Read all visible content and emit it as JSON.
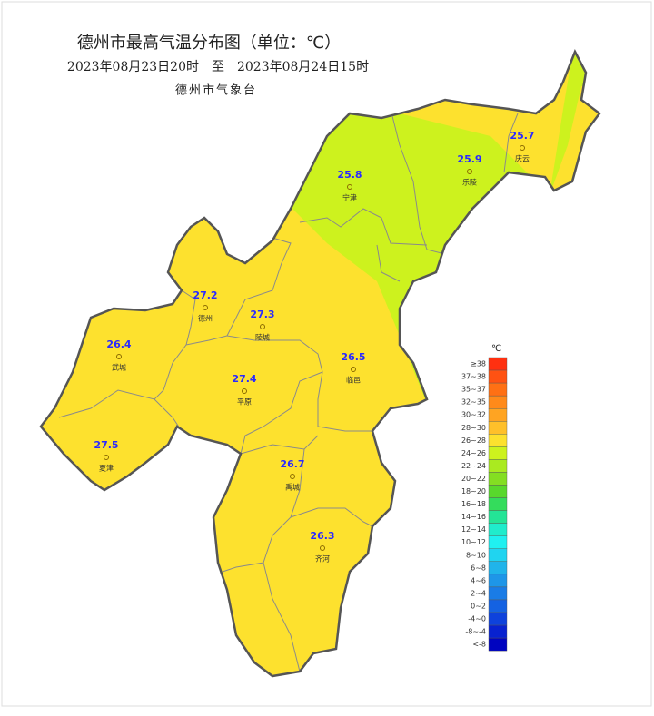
{
  "title": "德州市最高气温分布图（单位：℃）",
  "subtitle": "2023年08月23日20时　至　2023年08月24日15时",
  "organization": "德州市气象台",
  "stations": [
    {
      "name": "庆云",
      "value": 25.7
    },
    {
      "name": "宁津",
      "value": 25.8
    },
    {
      "name": "乐陵",
      "value": 25.9
    },
    {
      "name": "德州",
      "value": 27.2
    },
    {
      "name": "陵城",
      "value": 27.3
    },
    {
      "name": "武城",
      "value": 26.4
    },
    {
      "name": "临邑",
      "value": 26.5
    },
    {
      "name": "平原",
      "value": 27.4
    },
    {
      "name": "夏津",
      "value": 27.5
    },
    {
      "name": "禹城",
      "value": 26.7
    },
    {
      "name": "齐河",
      "value": 26.3
    }
  ],
  "legend": {
    "unit": "℃",
    "items": [
      {
        "label": "≥38",
        "color": "#ff3010"
      },
      {
        "label": "37~38",
        "color": "#ff5212"
      },
      {
        "label": "35~37",
        "color": "#ff7014"
      },
      {
        "label": "32~35",
        "color": "#ff8a1a"
      },
      {
        "label": "30~32",
        "color": "#ffa422"
      },
      {
        "label": "28~30",
        "color": "#ffc02a"
      },
      {
        "label": "26~28",
        "color": "#fde12e"
      },
      {
        "label": "24~26",
        "color": "#cdf21e"
      },
      {
        "label": "22~24",
        "color": "#aaea20"
      },
      {
        "label": "20~22",
        "color": "#84de22"
      },
      {
        "label": "18~20",
        "color": "#58d82c"
      },
      {
        "label": "16~18",
        "color": "#34dc5c"
      },
      {
        "label": "14~16",
        "color": "#24e496"
      },
      {
        "label": "12~14",
        "color": "#20eccc"
      },
      {
        "label": "10~12",
        "color": "#20f0f0"
      },
      {
        "label": "8~10",
        "color": "#20d4f0"
      },
      {
        "label": "6~8",
        "color": "#20b4ea"
      },
      {
        "label": "4~6",
        "color": "#1e96e8"
      },
      {
        "label": "2~4",
        "color": "#1a7ce6"
      },
      {
        "label": "0~2",
        "color": "#1462e2"
      },
      {
        "label": "-4~0",
        "color": "#0e42dc"
      },
      {
        "label": "-8~-4",
        "color": "#0822d0"
      },
      {
        "label": "<-8",
        "color": "#0004c0"
      }
    ]
  }
}
